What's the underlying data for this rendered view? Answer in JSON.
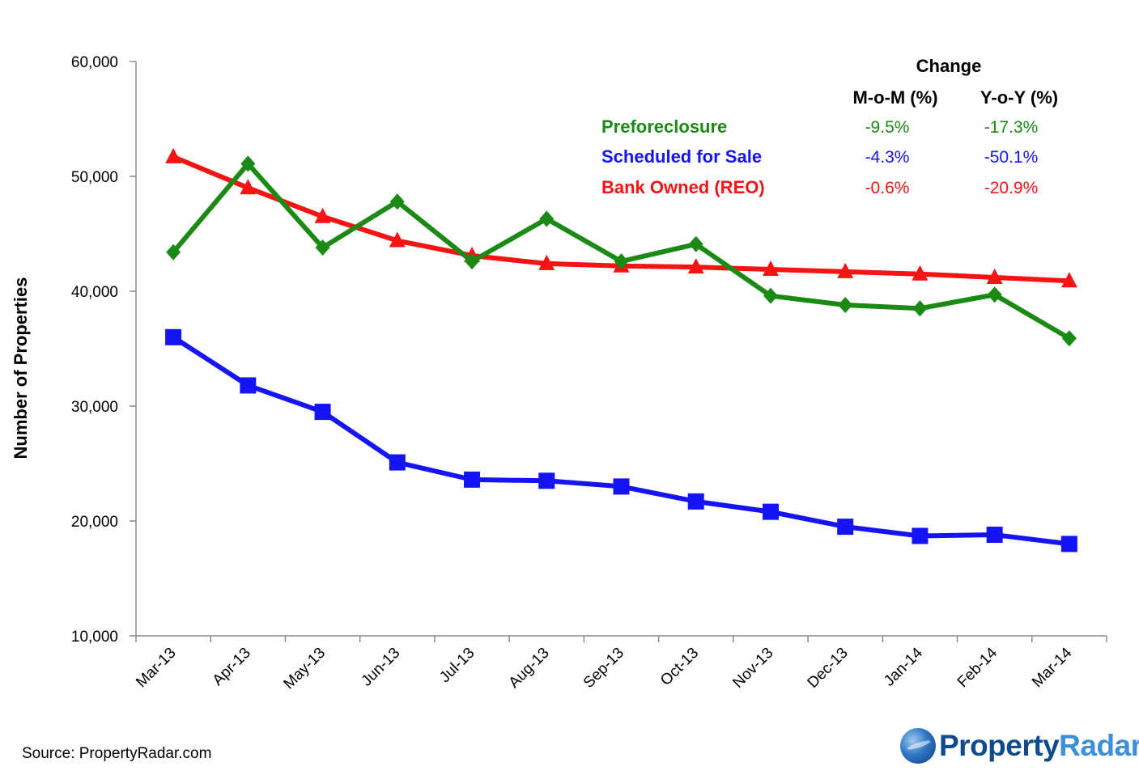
{
  "chart_data": {
    "type": "line",
    "categories": [
      "Mar-13",
      "Apr-13",
      "May-13",
      "Jun-13",
      "Jul-13",
      "Aug-13",
      "Sep-13",
      "Oct-13",
      "Nov-13",
      "Dec-13",
      "Jan-14",
      "Feb-14",
      "Mar-14"
    ],
    "series": [
      {
        "name": "Preforeclosure",
        "color": "#1a8a14",
        "marker": "diamond",
        "values": [
          43400,
          51100,
          43800,
          47800,
          42600,
          46300,
          42600,
          44100,
          39600,
          38800,
          38500,
          39700,
          35900
        ]
      },
      {
        "name": "Scheduled for Sale",
        "color": "#1414f5",
        "marker": "square",
        "values": [
          36000,
          31800,
          29500,
          25100,
          23600,
          23500,
          23000,
          21700,
          20800,
          19500,
          18700,
          18800,
          18000
        ]
      },
      {
        "name": "Bank Owned (REO)",
        "color": "#f51414",
        "marker": "triangle",
        "values": [
          51700,
          49000,
          46500,
          44400,
          43100,
          42400,
          42200,
          42100,
          41900,
          41700,
          41500,
          41200,
          40900
        ]
      }
    ],
    "ylabel": "Number of Properties",
    "ylim": [
      10000,
      60000
    ],
    "yticks": [
      10000,
      20000,
      30000,
      40000,
      50000,
      60000
    ],
    "ytick_labels": [
      "10,000",
      "20,000",
      "30,000",
      "40,000",
      "50,000",
      "60,000"
    ],
    "legend_table": {
      "title": "Change",
      "columns": [
        "M-o-M (%)",
        "Y-o-Y (%)"
      ],
      "rows": [
        {
          "name": "Preforeclosure",
          "mom": "-9.5%",
          "yoy": "-17.3%"
        },
        {
          "name": "Scheduled for Sale",
          "mom": "-4.3%",
          "yoy": "-50.1%"
        },
        {
          "name": "Bank Owned (REO)",
          "mom": "-0.6%",
          "yoy": "-20.9%"
        }
      ],
      "placement": "top-right"
    }
  },
  "footer": {
    "source": "Source: PropertyRadar.com",
    "logo_part1": "Property",
    "logo_part2": "Radar",
    "logo_mark": "®"
  }
}
